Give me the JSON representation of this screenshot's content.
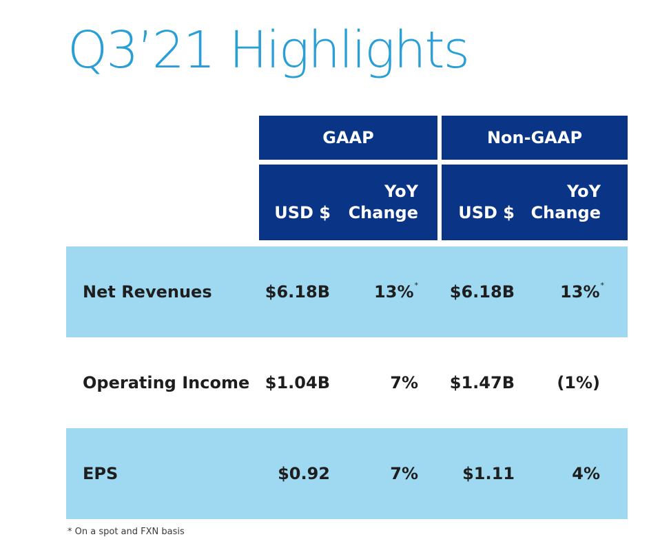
{
  "title": "Q3’21 Highlights",
  "headers": {
    "gaap": "GAAP",
    "non_gaap": "Non-GAAP",
    "usd": "USD $",
    "yoy_line1": "YoY",
    "yoy_line2": "Change"
  },
  "rows": [
    {
      "label": "Net Revenues",
      "gaap_usd": "$6.18B",
      "gaap_yoy": "13%",
      "gaap_yoy_mark": "*",
      "nongaap_usd": "$6.18B",
      "nongaap_yoy": "13%",
      "nongaap_yoy_mark": "*",
      "shaded": true
    },
    {
      "label": "Operating Income",
      "gaap_usd": "$1.04B",
      "gaap_yoy": "7%",
      "nongaap_usd": "$1.47B",
      "nongaap_yoy": "(1%)",
      "shaded": false
    },
    {
      "label": "EPS",
      "gaap_usd": "$0.92",
      "gaap_yoy": "7%",
      "nongaap_usd": "$1.11",
      "nongaap_yoy": "4%",
      "shaded": true
    }
  ],
  "footnote": "* On a spot and FXN basis",
  "colors": {
    "title": "#2a9fd6",
    "header_bg": "#0a3486",
    "row_shade": "#9fd8f1",
    "text": "#1e1e1e"
  }
}
